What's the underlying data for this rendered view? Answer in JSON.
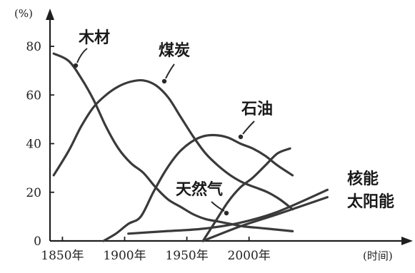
{
  "chart_data": {
    "type": "line",
    "ylabel": "(%)",
    "xlabel": "(时间)",
    "ylim": [
      0,
      80
    ],
    "xlim": [
      1840,
      2080
    ],
    "yticks": [
      "0",
      "20",
      "40",
      "60",
      "80"
    ],
    "xticks": [
      {
        "value": 1850,
        "label": "1850年"
      },
      {
        "value": 1900,
        "label": "1900年"
      },
      {
        "value": 1950,
        "label": "1950年"
      },
      {
        "value": 2000,
        "label": "2000年"
      }
    ],
    "grid": false,
    "series": [
      {
        "name": "木材",
        "x": [
          1843,
          1855,
          1865,
          1875,
          1885,
          1895,
          1905,
          1915,
          1925,
          1935,
          1945,
          1955,
          1965,
          1975,
          1985,
          1995,
          2005,
          2015,
          2025,
          2035
        ],
        "y": [
          77,
          74,
          67,
          58,
          47,
          38,
          32,
          28,
          22,
          17,
          14,
          11,
          9,
          8,
          7,
          6,
          5.5,
          5,
          4.5,
          4
        ]
      },
      {
        "name": "煤炭",
        "x": [
          1843,
          1855,
          1865,
          1875,
          1885,
          1895,
          1905,
          1915,
          1925,
          1935,
          1945,
          1955,
          1965,
          1975,
          1985,
          1995,
          2005,
          2015,
          2025,
          2035
        ],
        "y": [
          27,
          37,
          47,
          55,
          60,
          63.5,
          65.5,
          66,
          64,
          59,
          51,
          43,
          36,
          31,
          27,
          24,
          22,
          20,
          17,
          13
        ]
      },
      {
        "name": "石油",
        "x": [
          1883,
          1893,
          1903,
          1913,
          1923,
          1933,
          1943,
          1953,
          1963,
          1973,
          1983,
          1993,
          2003,
          2013,
          2023,
          2035
        ],
        "y": [
          0,
          3,
          7,
          10,
          20,
          29,
          36,
          40.5,
          43,
          43.5,
          42.5,
          40,
          38,
          35,
          31,
          27
        ]
      },
      {
        "name": "天然气",
        "x": [
          1963,
          1973,
          1983,
          1993,
          2003,
          2013,
          2023,
          2033
        ],
        "y": [
          0,
          8,
          16,
          22,
          26,
          31,
          36,
          38
        ]
      },
      {
        "name": "核能",
        "x": [
          1903,
          1933,
          1963,
          1993,
          2023,
          2063
        ],
        "y": [
          3,
          4,
          5,
          7.5,
          12,
          21
        ]
      },
      {
        "name": "太阳能",
        "x": [
          1963,
          1993,
          2023,
          2063
        ],
        "y": [
          0,
          6,
          11,
          18
        ]
      }
    ]
  }
}
